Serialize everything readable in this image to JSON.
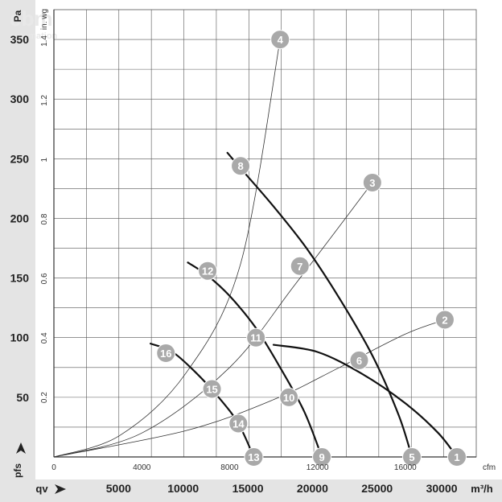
{
  "chart_data": {
    "type": "line",
    "axes": {
      "y_pa": {
        "unit": "Pa",
        "ticks": [
          50,
          100,
          150,
          200,
          250,
          300,
          350
        ],
        "range": [
          0,
          375
        ]
      },
      "y_inwg": {
        "unit": "in. wg",
        "ticks": [
          0.2,
          0.4,
          0.6,
          0.8,
          1,
          1.2,
          1.4
        ],
        "range": [
          0,
          1.5055
        ]
      },
      "x_cfm": {
        "unit": "cfm",
        "ticks": [
          0,
          4000,
          8000,
          12000,
          16000
        ],
        "range": [
          0,
          19230
        ]
      },
      "x_m3h": {
        "unit": "m³/h",
        "ticks": [
          5000,
          10000,
          15000,
          20000,
          25000,
          30000
        ],
        "range": [
          0,
          32670
        ]
      },
      "y_symbol": "pfs",
      "x_symbol": "qv",
      "grid": true
    },
    "fan_curves": [
      {
        "points": [
          [
            10000,
            94
          ],
          [
            12000,
            88
          ],
          [
            14000,
            70
          ],
          [
            16000,
            45
          ],
          [
            17500,
            20
          ],
          [
            18350,
            0
          ]
        ],
        "markers": [
          1,
          2,
          3,
          4
        ]
      },
      {
        "points": [
          [
            7900,
            255
          ],
          [
            8500,
            242
          ],
          [
            10000,
            210
          ],
          [
            11500,
            175
          ],
          [
            13000,
            133
          ],
          [
            14500,
            85
          ],
          [
            15700,
            35
          ],
          [
            16300,
            0
          ]
        ],
        "markers": [
          5,
          6,
          7,
          8
        ]
      },
      {
        "points": [
          [
            6100,
            163
          ],
          [
            7000,
            152
          ],
          [
            8000,
            135
          ],
          [
            9200,
            108
          ],
          [
            10300,
            75
          ],
          [
            11400,
            38
          ],
          [
            12200,
            0
          ]
        ],
        "markers": [
          9,
          10,
          11,
          12
        ]
      },
      {
        "points": [
          [
            4400,
            95
          ],
          [
            5400,
            88
          ],
          [
            6500,
            70
          ],
          [
            7500,
            50
          ],
          [
            8400,
            28
          ],
          [
            9100,
            0
          ]
        ],
        "markers": [
          13,
          14,
          15,
          16
        ]
      }
    ],
    "system_curves": [
      {
        "points": [
          [
            0,
            0
          ],
          [
            6000,
            22
          ],
          [
            10000,
            48
          ],
          [
            13000,
            75
          ],
          [
            16000,
            103
          ],
          [
            17800,
            115
          ]
        ]
      },
      {
        "points": [
          [
            0,
            0
          ],
          [
            4000,
            20
          ],
          [
            8000,
            75
          ],
          [
            11000,
            145
          ],
          [
            14500,
            230
          ]
        ]
      },
      {
        "points": [
          [
            0,
            0
          ],
          [
            3000,
            18
          ],
          [
            6000,
            70
          ],
          [
            8500,
            162
          ],
          [
            10300,
            350
          ]
        ]
      }
    ],
    "markers": [
      {
        "label": "1",
        "x": 18350,
        "y": 0
      },
      {
        "label": "2",
        "x": 17800,
        "y": 115
      },
      {
        "label": "3",
        "x": 14500,
        "y": 230
      },
      {
        "label": "4",
        "x": 10300,
        "y": 350
      },
      {
        "label": "5",
        "x": 16300,
        "y": 0
      },
      {
        "label": "6",
        "x": 13900,
        "y": 81
      },
      {
        "label": "7",
        "x": 11200,
        "y": 160
      },
      {
        "label": "8",
        "x": 8500,
        "y": 244
      },
      {
        "label": "9",
        "x": 12200,
        "y": 0
      },
      {
        "label": "10",
        "x": 10700,
        "y": 50
      },
      {
        "label": "11",
        "x": 9200,
        "y": 100
      },
      {
        "label": "12",
        "x": 7000,
        "y": 156
      },
      {
        "label": "13",
        "x": 9100,
        "y": 0
      },
      {
        "label": "14",
        "x": 8400,
        "y": 28
      },
      {
        "label": "15",
        "x": 7200,
        "y": 57
      },
      {
        "label": "16",
        "x": 5100,
        "y": 87
      }
    ]
  }
}
